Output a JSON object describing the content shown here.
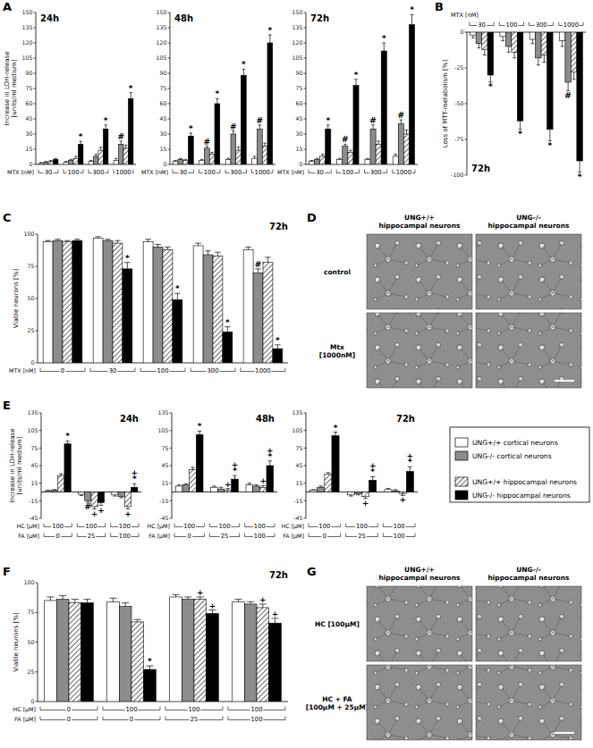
{
  "panel_labels": [
    "A",
    "B",
    "C",
    "D",
    "E",
    "F",
    "G"
  ],
  "chart_data": [
    {
      "type": "bar",
      "title": "24h",
      "ylabel": [
        "Increase in LDH-release",
        "[units/ml medium]"
      ],
      "xlabel": "MTX [nM]",
      "categories": [
        "30",
        "100",
        "300",
        "1000"
      ],
      "ylim": [
        0,
        150
      ],
      "yticks": [
        0,
        15,
        30,
        45,
        60,
        75,
        90,
        105,
        120,
        135,
        150
      ],
      "series": [
        {
          "color": "#ffffff",
          "values": [
            1,
            2,
            3,
            4
          ],
          "errors": [
            1,
            1,
            1,
            2
          ],
          "significance": [
            null,
            null,
            null,
            null
          ]
        },
        {
          "color": "#8c8c8c",
          "values": [
            2,
            4,
            8,
            20
          ],
          "errors": [
            1,
            1,
            2,
            3
          ],
          "significance": [
            null,
            null,
            null,
            "#"
          ]
        },
        {
          "color": "#ffffff",
          "line_style": "hatched",
          "values": [
            3,
            6,
            14,
            16
          ],
          "errors": [
            1,
            2,
            3,
            3
          ],
          "significance": [
            null,
            null,
            null,
            null
          ]
        },
        {
          "color": "#000000",
          "values": [
            5,
            20,
            35,
            65
          ],
          "errors": [
            1,
            3,
            4,
            6
          ],
          "significance": [
            null,
            "*",
            "*",
            "*"
          ]
        }
      ]
    },
    {
      "type": "bar",
      "title": "48h",
      "xlabel": "MTX [nM]",
      "categories": [
        "30",
        "100",
        "300",
        "1000"
      ],
      "ylim": [
        0,
        150
      ],
      "yticks": [
        0,
        15,
        30,
        45,
        60,
        75,
        90,
        105,
        120,
        135,
        150
      ],
      "series": [
        {
          "color": "#ffffff",
          "values": [
            3,
            4,
            5,
            6
          ],
          "errors": [
            1,
            1,
            1,
            2
          ],
          "significance": [
            null,
            null,
            null,
            null
          ]
        },
        {
          "color": "#8c8c8c",
          "values": [
            5,
            16,
            30,
            35
          ],
          "errors": [
            1,
            2,
            3,
            4
          ],
          "significance": [
            null,
            "#",
            "#",
            "#"
          ]
        },
        {
          "color": "#ffffff",
          "line_style": "hatched",
          "values": [
            4,
            10,
            14,
            18
          ],
          "errors": [
            1,
            2,
            3,
            3
          ],
          "significance": [
            null,
            null,
            null,
            null
          ]
        },
        {
          "color": "#000000",
          "values": [
            28,
            60,
            88,
            120
          ],
          "errors": [
            3,
            5,
            6,
            8
          ],
          "significance": [
            "*",
            "*",
            "*",
            "*"
          ]
        }
      ]
    },
    {
      "type": "bar",
      "title": "72h",
      "xlabel": "MTX [nM]",
      "categories": [
        "30",
        "100",
        "300",
        "1000"
      ],
      "ylim": [
        0,
        150
      ],
      "yticks": [
        0,
        15,
        30,
        45,
        60,
        75,
        90,
        105,
        120,
        135,
        150
      ],
      "series": [
        {
          "color": "#ffffff",
          "values": [
            3,
            5,
            5,
            8
          ],
          "errors": [
            1,
            1,
            1,
            2
          ],
          "significance": [
            null,
            null,
            null,
            null
          ]
        },
        {
          "color": "#8c8c8c",
          "values": [
            5,
            18,
            35,
            40
          ],
          "errors": [
            1,
            2,
            4,
            4
          ],
          "significance": [
            null,
            "#",
            "#",
            "#"
          ]
        },
        {
          "color": "#ffffff",
          "line_style": "hatched",
          "values": [
            8,
            12,
            20,
            30
          ],
          "errors": [
            2,
            2,
            3,
            4
          ],
          "significance": [
            null,
            null,
            null,
            null
          ]
        },
        {
          "color": "#000000",
          "values": [
            35,
            78,
            112,
            138
          ],
          "errors": [
            4,
            6,
            8,
            10
          ],
          "significance": [
            "*",
            "*",
            "*",
            "*"
          ]
        }
      ]
    },
    {
      "type": "bar",
      "title": "72h",
      "ylabel": [
        "Loss of MTT-metabolism [%]"
      ],
      "xlabel": "MTX [nM]",
      "categories": [
        "30",
        "100",
        "300",
        "1000"
      ],
      "ylim": [
        -100,
        0
      ],
      "yticks": [
        -100,
        -75,
        -50,
        -25,
        0
      ],
      "series": [
        {
          "color": "#ffffff",
          "values": [
            -2,
            -3,
            -5,
            -6
          ],
          "errors": [
            2,
            3,
            3,
            4
          ],
          "significance": [
            null,
            null,
            null,
            null
          ]
        },
        {
          "color": "#8c8c8c",
          "values": [
            -8,
            -10,
            -18,
            -35
          ],
          "errors": [
            3,
            4,
            5,
            6
          ],
          "significance": [
            null,
            null,
            null,
            "#"
          ]
        },
        {
          "color": "#ffffff",
          "line_style": "hatched",
          "values": [
            -12,
            -14,
            -16,
            -28
          ],
          "errors": [
            4,
            4,
            5,
            5
          ],
          "significance": [
            null,
            null,
            null,
            null
          ]
        },
        {
          "color": "#000000",
          "values": [
            -30,
            -62,
            -68,
            -90
          ],
          "errors": [
            5,
            6,
            8,
            8
          ],
          "significance": [
            "*",
            "*",
            "*",
            "*"
          ]
        }
      ]
    },
    {
      "type": "bar",
      "title": "72h",
      "ylabel": [
        "Viable neurons [%]"
      ],
      "xlabel": "MTX [nM]",
      "categories": [
        "0",
        "30",
        "100",
        "300",
        "1000"
      ],
      "ylim": [
        0,
        100
      ],
      "yticks": [
        0,
        25,
        50,
        75,
        100
      ],
      "series": [
        {
          "color": "#ffffff",
          "values": [
            94,
            97,
            94,
            91,
            88
          ],
          "errors": [
            1,
            1,
            2,
            2,
            2
          ],
          "significance": [
            null,
            null,
            null,
            null,
            null
          ]
        },
        {
          "color": "#8c8c8c",
          "values": [
            95,
            95,
            90,
            84,
            70
          ],
          "errors": [
            1,
            1,
            2,
            3,
            3
          ],
          "significance": [
            null,
            null,
            null,
            null,
            "#"
          ]
        },
        {
          "color": "#ffffff",
          "line_style": "hatched",
          "values": [
            94,
            93,
            88,
            83,
            78
          ],
          "errors": [
            1,
            2,
            2,
            3,
            4
          ],
          "significance": [
            null,
            null,
            null,
            null,
            null
          ]
        },
        {
          "color": "#000000",
          "values": [
            95,
            73,
            49,
            24,
            11
          ],
          "errors": [
            1,
            5,
            5,
            4,
            3
          ],
          "significance": [
            null,
            "*",
            "*",
            "*",
            "*"
          ]
        }
      ]
    },
    {
      "type": "bar",
      "title": "24h",
      "ylabel": [
        "Increase in LDH-release",
        "[units/ml medium]"
      ],
      "legend": "right",
      "x_label_rows": [
        {
          "label": "HC [µM]",
          "values": [
            "100",
            "100",
            "100"
          ]
        },
        {
          "label": "FA [µM]",
          "values": [
            "0",
            "25",
            "100"
          ]
        }
      ],
      "ylim": [
        -45,
        135
      ],
      "yticks": [
        -45,
        -15,
        15,
        45,
        75,
        105,
        135
      ],
      "series": [
        {
          "name": "UNG+/+ cortical neurons",
          "color": "#ffffff",
          "values": [
            2,
            -4,
            -5
          ],
          "errors": [
            1,
            2,
            2
          ],
          "significance": [
            null,
            null,
            null
          ]
        },
        {
          "name": "UNG-/- cortical neurons",
          "color": "#8c8c8c",
          "values": [
            3,
            -15,
            -8
          ],
          "errors": [
            1,
            3,
            2
          ],
          "significance": [
            null,
            "#",
            null
          ]
        },
        {
          "name": "UNG+/+ hippocampal neurons",
          "color": "#ffffff",
          "line_style": "hatched",
          "values": [
            28,
            -25,
            -25
          ],
          "errors": [
            3,
            4,
            4
          ],
          "significance": [
            null,
            "+",
            "+"
          ]
        },
        {
          "name": "UNG-/- hippocampal neurons",
          "color": "#000000",
          "values": [
            82,
            -18,
            8
          ],
          "errors": [
            5,
            5,
            6
          ],
          "significance": [
            "*",
            "+",
            "+*"
          ]
        }
      ]
    },
    {
      "type": "bar",
      "title": "48h",
      "x_label_rows": [
        {
          "label": "HC [µM]",
          "values": [
            "100",
            "100",
            "100"
          ]
        },
        {
          "label": "FA [µM]",
          "values": [
            "0",
            "25",
            "100"
          ]
        }
      ],
      "ylim": [
        -45,
        135
      ],
      "yticks": [
        -45,
        -15,
        15,
        45,
        75,
        105,
        135
      ],
      "series": [
        {
          "color": "#ffffff",
          "values": [
            10,
            8,
            12
          ],
          "errors": [
            2,
            2,
            3
          ],
          "significance": [
            null,
            null,
            null
          ]
        },
        {
          "color": "#8c8c8c",
          "values": [
            12,
            5,
            10
          ],
          "errors": [
            2,
            3,
            2
          ],
          "significance": [
            null,
            null,
            null
          ]
        },
        {
          "color": "#ffffff",
          "line_style": "hatched",
          "values": [
            38,
            3,
            8
          ],
          "errors": [
            4,
            3,
            3
          ],
          "significance": [
            null,
            "+",
            "+"
          ]
        },
        {
          "color": "#000000",
          "values": [
            98,
            22,
            45
          ],
          "errors": [
            6,
            6,
            8
          ],
          "significance": [
            "*",
            "+*",
            "+*"
          ]
        }
      ]
    },
    {
      "type": "bar",
      "title": "72h",
      "x_label_rows": [
        {
          "label": "HC [µM]",
          "values": [
            "100",
            "100",
            "100"
          ]
        },
        {
          "label": "FA [µM]",
          "values": [
            "0",
            "25",
            "100"
          ]
        }
      ],
      "ylim": [
        -45,
        135
      ],
      "yticks": [
        -45,
        -15,
        15,
        45,
        75,
        105,
        135
      ],
      "series": [
        {
          "color": "#ffffff",
          "values": [
            3,
            -5,
            4
          ],
          "errors": [
            1,
            2,
            2
          ],
          "significance": [
            null,
            null,
            null
          ]
        },
        {
          "color": "#8c8c8c",
          "values": [
            8,
            -3,
            2
          ],
          "errors": [
            2,
            2,
            2
          ],
          "significance": [
            null,
            null,
            null
          ]
        },
        {
          "color": "#ffffff",
          "line_style": "hatched",
          "values": [
            30,
            -8,
            -3
          ],
          "errors": [
            3,
            3,
            3
          ],
          "significance": [
            null,
            "+",
            "+"
          ]
        },
        {
          "color": "#000000",
          "values": [
            96,
            20,
            35
          ],
          "errors": [
            6,
            6,
            8
          ],
          "significance": [
            "*",
            "+*",
            "+*"
          ]
        }
      ]
    },
    {
      "type": "bar",
      "title": "72h",
      "ylabel": [
        "Viable neurons [%]"
      ],
      "x_label_rows": [
        {
          "label": "HC [µM]",
          "values": [
            "0",
            "100",
            "100",
            "100"
          ]
        },
        {
          "label": "FA [µM]",
          "values": [
            "0",
            "0",
            "25",
            "100"
          ]
        }
      ],
      "ylim": [
        0,
        100
      ],
      "yticks": [
        0,
        25,
        50,
        75,
        100
      ],
      "series": [
        {
          "color": "#ffffff",
          "values": [
            85,
            84,
            88,
            84
          ],
          "errors": [
            3,
            3,
            2,
            2
          ],
          "significance": [
            null,
            null,
            null,
            null
          ]
        },
        {
          "color": "#8c8c8c",
          "values": [
            86,
            80,
            86,
            82
          ],
          "errors": [
            3,
            3,
            2,
            2
          ],
          "significance": [
            null,
            null,
            null,
            null
          ]
        },
        {
          "color": "#ffffff",
          "line_style": "hatched",
          "values": [
            83,
            67,
            86,
            79
          ],
          "errors": [
            3,
            2,
            2,
            3
          ],
          "significance": [
            null,
            null,
            "+",
            "+"
          ]
        },
        {
          "color": "#000000",
          "values": [
            83,
            27,
            74,
            66
          ],
          "errors": [
            3,
            3,
            3,
            4
          ],
          "significance": [
            null,
            "*",
            "+",
            "+"
          ]
        }
      ]
    }
  ],
  "micrographs": [
    {
      "columns": [
        [
          "UNG+/+",
          "hippocampal neurons"
        ],
        [
          "UNG-/-",
          "hippocampal neurons"
        ]
      ],
      "rows": [
        [
          "control"
        ],
        [
          "Mtx",
          "[1000nM]"
        ]
      ]
    },
    {
      "columns": [
        [
          "UNG+/+",
          "hippocampal neurons"
        ],
        [
          "UNG-/-",
          "hippocampal neurons"
        ]
      ],
      "rows": [
        [
          "HC [100µM]"
        ],
        [
          "HC + FA",
          "[100µM + 25µM]"
        ]
      ]
    }
  ]
}
